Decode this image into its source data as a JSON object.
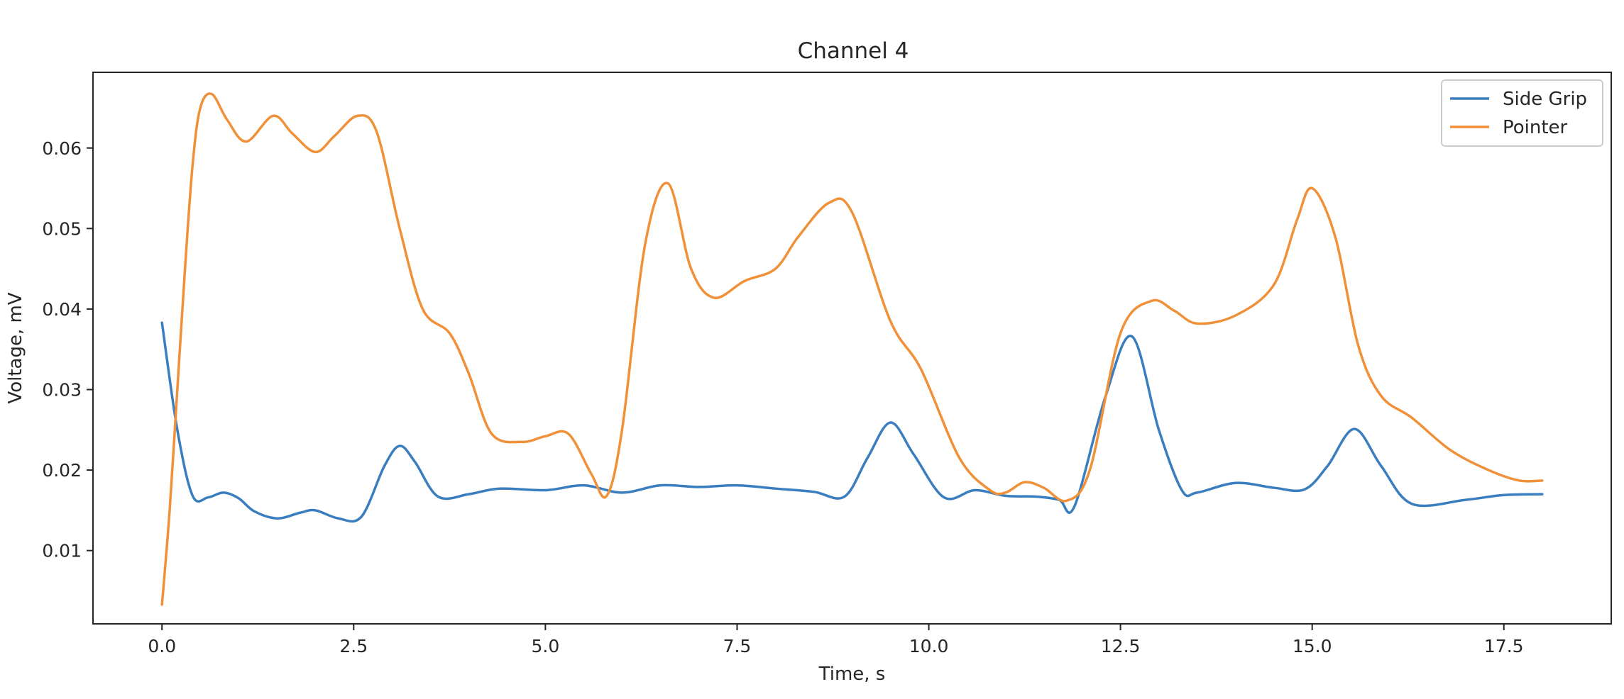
{
  "chart_data": {
    "type": "line",
    "title": "Channel 4",
    "xlabel": "Time, s",
    "ylabel": "Voltage, mV",
    "xlim": [
      -0.9,
      18.9
    ],
    "ylim": [
      0.0009,
      0.0694
    ],
    "x_ticks": [
      0.0,
      2.5,
      5.0,
      7.5,
      10.0,
      12.5,
      15.0,
      17.5
    ],
    "x_tick_labels": [
      "0.0",
      "2.5",
      "5.0",
      "7.5",
      "10.0",
      "12.5",
      "15.0",
      "17.5"
    ],
    "y_ticks": [
      0.01,
      0.02,
      0.03,
      0.04,
      0.05,
      0.06
    ],
    "y_tick_labels": [
      "0.01",
      "0.02",
      "0.03",
      "0.04",
      "0.05",
      "0.06"
    ],
    "grid": false,
    "legend_position": "top-right",
    "series": [
      {
        "name": "Side Grip",
        "color": "#3a7ebf",
        "points": [
          [
            0.0,
            0.0383
          ],
          [
            0.2,
            0.025
          ],
          [
            0.4,
            0.0168
          ],
          [
            0.6,
            0.0166
          ],
          [
            0.8,
            0.0172
          ],
          [
            1.0,
            0.0165
          ],
          [
            1.2,
            0.0149
          ],
          [
            1.5,
            0.014
          ],
          [
            1.8,
            0.0147
          ],
          [
            2.0,
            0.015
          ],
          [
            2.3,
            0.014
          ],
          [
            2.6,
            0.0142
          ],
          [
            2.9,
            0.0205
          ],
          [
            3.1,
            0.023
          ],
          [
            3.3,
            0.021
          ],
          [
            3.6,
            0.0167
          ],
          [
            4.0,
            0.017
          ],
          [
            4.4,
            0.0177
          ],
          [
            5.0,
            0.0175
          ],
          [
            5.5,
            0.0181
          ],
          [
            6.0,
            0.0172
          ],
          [
            6.5,
            0.0181
          ],
          [
            7.0,
            0.0179
          ],
          [
            7.5,
            0.0181
          ],
          [
            8.0,
            0.0177
          ],
          [
            8.5,
            0.0173
          ],
          [
            8.9,
            0.0167
          ],
          [
            9.2,
            0.0215
          ],
          [
            9.5,
            0.0259
          ],
          [
            9.8,
            0.022
          ],
          [
            10.2,
            0.0166
          ],
          [
            10.6,
            0.0175
          ],
          [
            11.0,
            0.0168
          ],
          [
            11.4,
            0.0167
          ],
          [
            11.7,
            0.0163
          ],
          [
            11.9,
            0.0155
          ],
          [
            12.3,
            0.029
          ],
          [
            12.65,
            0.0366
          ],
          [
            13.0,
            0.025
          ],
          [
            13.3,
            0.0175
          ],
          [
            13.5,
            0.0172
          ],
          [
            14.0,
            0.0184
          ],
          [
            14.5,
            0.0178
          ],
          [
            14.9,
            0.0176
          ],
          [
            15.2,
            0.0205
          ],
          [
            15.55,
            0.0251
          ],
          [
            15.9,
            0.0205
          ],
          [
            16.3,
            0.0158
          ],
          [
            17.0,
            0.0163
          ],
          [
            17.5,
            0.0169
          ],
          [
            18.0,
            0.017
          ]
        ]
      },
      {
        "name": "Pointer",
        "color": "#f0913a",
        "points": [
          [
            0.0,
            0.0033
          ],
          [
            0.1,
            0.015
          ],
          [
            0.2,
            0.03
          ],
          [
            0.3,
            0.045
          ],
          [
            0.4,
            0.058
          ],
          [
            0.5,
            0.065
          ],
          [
            0.65,
            0.0667
          ],
          [
            0.85,
            0.0635
          ],
          [
            1.1,
            0.0608
          ],
          [
            1.45,
            0.064
          ],
          [
            1.7,
            0.0618
          ],
          [
            2.0,
            0.0595
          ],
          [
            2.25,
            0.0615
          ],
          [
            2.55,
            0.064
          ],
          [
            2.8,
            0.062
          ],
          [
            3.1,
            0.05
          ],
          [
            3.4,
            0.04
          ],
          [
            3.75,
            0.037
          ],
          [
            4.0,
            0.032
          ],
          [
            4.3,
            0.0245
          ],
          [
            4.7,
            0.0235
          ],
          [
            5.0,
            0.0242
          ],
          [
            5.3,
            0.0245
          ],
          [
            5.6,
            0.0195
          ],
          [
            5.8,
            0.0168
          ],
          [
            6.0,
            0.025
          ],
          [
            6.3,
            0.048
          ],
          [
            6.6,
            0.0556
          ],
          [
            6.9,
            0.045
          ],
          [
            7.2,
            0.0414
          ],
          [
            7.6,
            0.0435
          ],
          [
            8.0,
            0.045
          ],
          [
            8.3,
            0.049
          ],
          [
            8.7,
            0.0532
          ],
          [
            9.0,
            0.052
          ],
          [
            9.5,
            0.0385
          ],
          [
            9.9,
            0.0325
          ],
          [
            10.4,
            0.0215
          ],
          [
            10.8,
            0.0175
          ],
          [
            11.0,
            0.0172
          ],
          [
            11.25,
            0.0185
          ],
          [
            11.5,
            0.0178
          ],
          [
            11.8,
            0.0162
          ],
          [
            12.1,
            0.02
          ],
          [
            12.5,
            0.037
          ],
          [
            12.9,
            0.041
          ],
          [
            13.2,
            0.0398
          ],
          [
            13.5,
            0.0382
          ],
          [
            14.0,
            0.0392
          ],
          [
            14.5,
            0.043
          ],
          [
            14.8,
            0.051
          ],
          [
            15.0,
            0.055
          ],
          [
            15.3,
            0.049
          ],
          [
            15.6,
            0.0355
          ],
          [
            15.9,
            0.0292
          ],
          [
            16.3,
            0.0265
          ],
          [
            16.8,
            0.0225
          ],
          [
            17.3,
            0.02
          ],
          [
            17.7,
            0.0187
          ],
          [
            18.0,
            0.0187
          ]
        ]
      }
    ]
  }
}
